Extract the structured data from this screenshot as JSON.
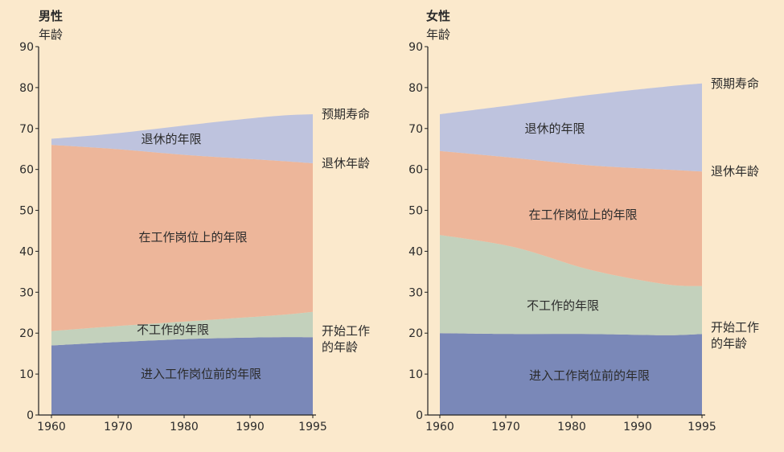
{
  "colors": {
    "background": "#fbe9cc",
    "before_work": "#7a88b8",
    "not_working": "#c3d1bc",
    "working": "#edb69a",
    "retirement": "#bec3de",
    "axis": "#222222"
  },
  "chart_data": [
    {
      "type": "area",
      "stacked": true,
      "title": "男性",
      "ylabel": "年龄",
      "xlim": [
        1960,
        1995
      ],
      "ylim": [
        0,
        90
      ],
      "x_ticks": [
        1960,
        1970,
        1980,
        1990,
        1995
      ],
      "y_ticks": [
        0,
        10,
        20,
        30,
        40,
        50,
        60,
        70,
        80,
        90
      ],
      "grid": false,
      "x": [
        1962,
        1970,
        1980,
        1990,
        1995
      ],
      "boundaries": {
        "start_work_age": [
          17,
          17.8,
          18.6,
          19,
          19
        ],
        "not_working_top": [
          20.5,
          21.7,
          23,
          24.3,
          25.2
        ],
        "retirement_age": [
          66,
          65,
          63.4,
          62.2,
          61.5
        ],
        "life_expectancy": [
          67.5,
          68.8,
          71,
          73,
          73.5
        ]
      },
      "series": [
        {
          "name": "进入工作岗位前的年限",
          "color_key": "before_work"
        },
        {
          "name": "不工作的年限",
          "color_key": "not_working"
        },
        {
          "name": "在工作岗位上的年限",
          "color_key": "working"
        },
        {
          "name": "退休的年限",
          "color_key": "retirement"
        }
      ],
      "line_labels": [
        {
          "text": [
            "预期寿命"
          ],
          "at": 73.5
        },
        {
          "text": [
            "退休年龄"
          ],
          "at": 61.5
        },
        {
          "text": [
            "开始工作",
            "的年龄"
          ],
          "at": 19
        }
      ]
    },
    {
      "type": "area",
      "stacked": true,
      "title": "女性",
      "ylabel": "年龄",
      "xlim": [
        1960,
        1995
      ],
      "ylim": [
        0,
        90
      ],
      "x_ticks": [
        1960,
        1970,
        1980,
        1990,
        1995
      ],
      "y_ticks": [
        0,
        10,
        20,
        30,
        40,
        50,
        60,
        70,
        80,
        90
      ],
      "grid": false,
      "x": [
        1960,
        1970,
        1980,
        1990,
        1995
      ],
      "boundaries": {
        "start_work_age": [
          20,
          19.8,
          19.8,
          19.5,
          19.8
        ],
        "not_working_top": [
          44,
          41,
          35.5,
          32,
          31.5
        ],
        "retirement_age": [
          64.5,
          62.8,
          61,
          60,
          59.5
        ],
        "life_expectancy": [
          73.5,
          75.8,
          78.2,
          80.2,
          81
        ]
      },
      "series": [
        {
          "name": "进入工作岗位前的年限",
          "color_key": "before_work"
        },
        {
          "name": "不工作的年限",
          "color_key": "not_working"
        },
        {
          "name": "在工作岗位上的年限",
          "color_key": "working"
        },
        {
          "name": "退休的年限",
          "color_key": "retirement"
        }
      ],
      "line_labels": [
        {
          "text": [
            "预期寿命"
          ],
          "at": 81
        },
        {
          "text": [
            "退休年龄"
          ],
          "at": 59.5
        },
        {
          "text": [
            "开始工作",
            "的年龄"
          ],
          "at": 19.8
        }
      ]
    }
  ]
}
